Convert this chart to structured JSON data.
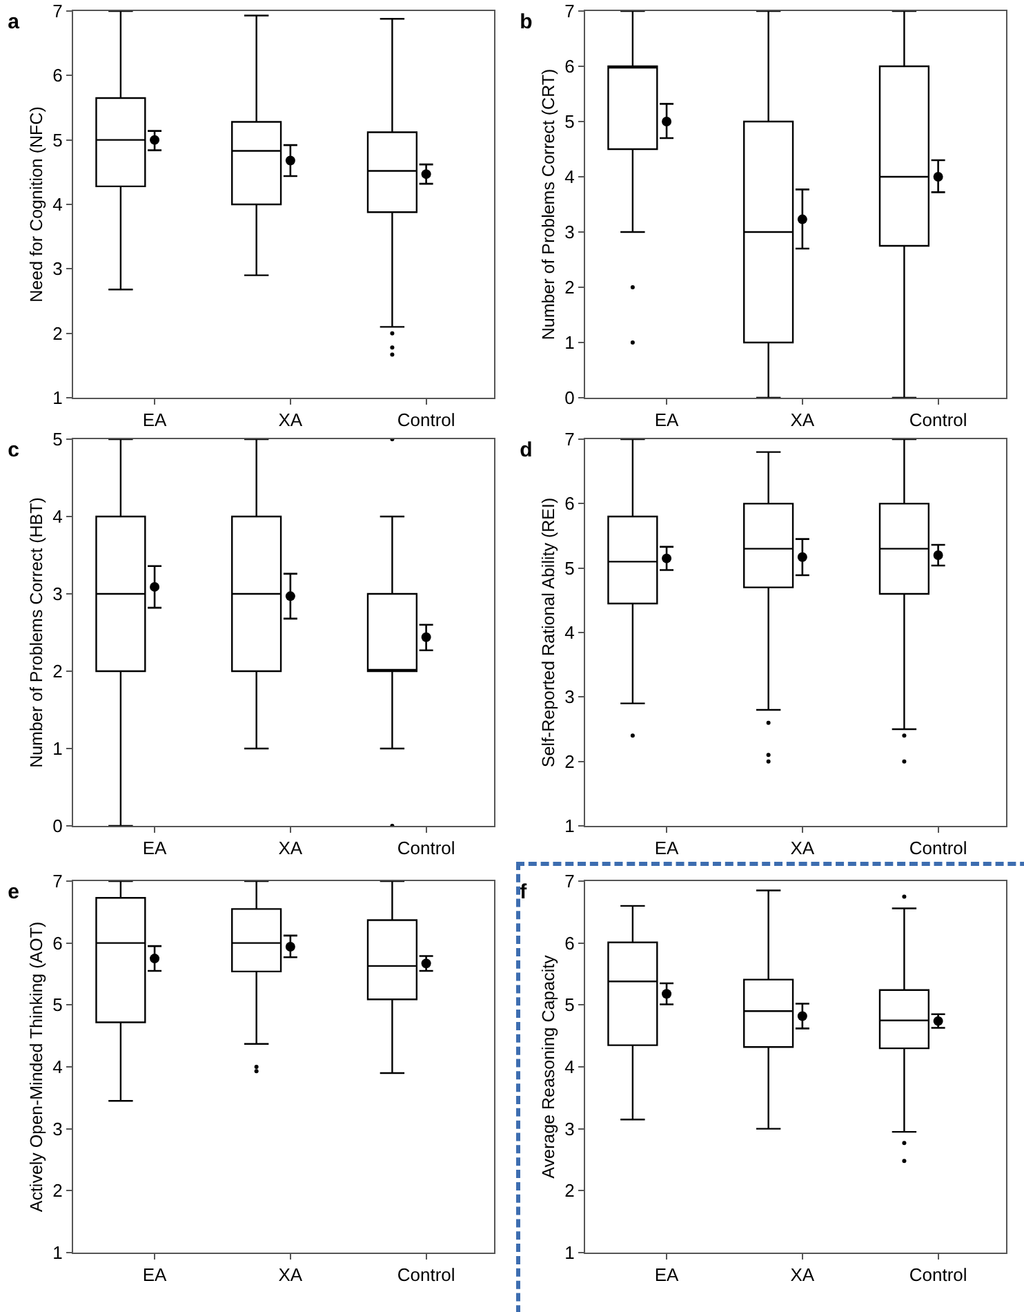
{
  "chart_data": [
    {
      "type": "box",
      "title": "a",
      "ylabel": "Need for Cognition (NFC)",
      "categories": [
        "EA",
        "XA",
        "Control"
      ],
      "ylim": [
        1,
        7
      ],
      "yticks": [
        1,
        2,
        3,
        4,
        5,
        6,
        7
      ],
      "marker": "circle",
      "boxes": [
        {
          "low": 2.68,
          "q1": 4.28,
          "median": 5.0,
          "q3": 5.65,
          "high": 7.0
        },
        {
          "low": 2.9,
          "q1": 4.0,
          "median": 4.83,
          "q3": 5.28,
          "high": 6.93
        },
        {
          "low": 2.1,
          "q1": 3.88,
          "median": 4.52,
          "q3": 5.12,
          "high": 6.88,
          "outliers": [
            2.0,
            1.78,
            1.67
          ]
        }
      ],
      "series": [
        {
          "type": "scatter",
          "color": "#000000",
          "values": [
            5.0,
            4.68,
            4.47
          ],
          "errors": [
            [
              4.84,
              5.14
            ],
            [
              4.44,
              4.92
            ],
            [
              4.32,
              4.62
            ]
          ]
        }
      ]
    },
    {
      "type": "box",
      "title": "b",
      "ylabel": "Number of Problems Correct (CRT)",
      "categories": [
        "EA",
        "XA",
        "Control"
      ],
      "ylim": [
        0,
        7
      ],
      "yticks": [
        0,
        1,
        2,
        3,
        4,
        5,
        6,
        7
      ],
      "marker": "circle",
      "boxes": [
        {
          "low": 3,
          "q1": 4.5,
          "median": 6,
          "q3": 6,
          "high": 7,
          "outliers": [
            2,
            1
          ]
        },
        {
          "low": 0,
          "q1": 1,
          "median": 3,
          "q3": 5,
          "high": 7
        },
        {
          "low": 0,
          "q1": 2.75,
          "median": 4,
          "q3": 6,
          "high": 7
        }
      ],
      "series": [
        {
          "type": "scatter",
          "color": "#000000",
          "values": [
            5.0,
            3.23,
            4.0
          ],
          "errors": [
            [
              4.7,
              5.32
            ],
            [
              2.7,
              3.77
            ],
            [
              3.72,
              4.3
            ]
          ]
        }
      ]
    },
    {
      "type": "box",
      "title": "c",
      "ylabel": "Number of Problems Correct (HBT)",
      "categories": [
        "EA",
        "XA",
        "Control"
      ],
      "ylim": [
        0,
        5
      ],
      "yticks": [
        0,
        1,
        2,
        3,
        4,
        5
      ],
      "marker": "circle",
      "boxes": [
        {
          "low": 0,
          "q1": 2,
          "median": 3,
          "q3": 4,
          "high": 5
        },
        {
          "low": 1,
          "q1": 2,
          "median": 3,
          "q3": 4,
          "high": 5
        },
        {
          "low": 1,
          "q1": 2,
          "median": 2,
          "q3": 3,
          "high": 4,
          "outliers": [
            5,
            0
          ]
        }
      ],
      "series": [
        {
          "type": "scatter",
          "color": "#000000",
          "values": [
            3.09,
            2.97,
            2.44
          ],
          "errors": [
            [
              2.82,
              3.36
            ],
            [
              2.68,
              3.26
            ],
            [
              2.27,
              2.6
            ]
          ]
        }
      ]
    },
    {
      "type": "box",
      "title": "d",
      "ylabel": "Self-Reported Rational Ability (REI)",
      "categories": [
        "EA",
        "XA",
        "Control"
      ],
      "ylim": [
        1,
        7
      ],
      "yticks": [
        1,
        2,
        3,
        4,
        5,
        6,
        7
      ],
      "marker": "circle",
      "boxes": [
        {
          "low": 2.9,
          "q1": 4.45,
          "median": 5.1,
          "q3": 5.8,
          "high": 7,
          "outliers": [
            2.4
          ]
        },
        {
          "low": 2.8,
          "q1": 4.7,
          "median": 5.3,
          "q3": 6.0,
          "high": 6.8,
          "outliers": [
            2.6,
            2.1,
            2.0
          ]
        },
        {
          "low": 2.5,
          "q1": 4.6,
          "median": 5.3,
          "q3": 6.0,
          "high": 7,
          "outliers": [
            2.4,
            2.0
          ]
        }
      ],
      "series": [
        {
          "type": "scatter",
          "color": "#000000",
          "values": [
            5.15,
            5.17,
            5.2
          ],
          "errors": [
            [
              4.97,
              5.33
            ],
            [
              4.89,
              5.45
            ],
            [
              5.04,
              5.36
            ]
          ]
        }
      ]
    },
    {
      "type": "box",
      "title": "e",
      "ylabel": "Actively Open-Minded Thinking (AOT)",
      "categories": [
        "EA",
        "XA",
        "Control"
      ],
      "ylim": [
        1,
        7
      ],
      "yticks": [
        1,
        2,
        3,
        4,
        5,
        6,
        7
      ],
      "marker": "circle",
      "boxes": [
        {
          "low": 3.45,
          "q1": 4.72,
          "median": 6.0,
          "q3": 6.73,
          "high": 7
        },
        {
          "low": 4.37,
          "q1": 5.54,
          "median": 6.0,
          "q3": 6.55,
          "high": 7,
          "outliers": [
            4.0,
            3.93
          ]
        },
        {
          "low": 3.9,
          "q1": 5.09,
          "median": 5.63,
          "q3": 6.37,
          "high": 7
        }
      ],
      "series": [
        {
          "type": "scatter",
          "color": "#000000",
          "values": [
            5.75,
            5.94,
            5.67
          ],
          "errors": [
            [
              5.55,
              5.95
            ],
            [
              5.77,
              6.12
            ],
            [
              5.55,
              5.79
            ]
          ]
        }
      ]
    },
    {
      "type": "box",
      "title": "f",
      "ylabel": "Average Reasoning Capacity",
      "categories": [
        "EA",
        "XA",
        "Control"
      ],
      "ylim": [
        1,
        7
      ],
      "yticks": [
        1,
        2,
        3,
        4,
        5,
        6,
        7
      ],
      "marker": "circle",
      "boxes": [
        {
          "low": 3.15,
          "q1": 4.35,
          "median": 5.38,
          "q3": 6.01,
          "high": 6.6
        },
        {
          "low": 3.0,
          "q1": 4.32,
          "median": 4.9,
          "q3": 5.41,
          "high": 6.85
        },
        {
          "low": 2.95,
          "q1": 4.3,
          "median": 4.75,
          "q3": 5.24,
          "high": 6.56,
          "outliers": [
            6.75,
            2.77,
            2.48
          ]
        }
      ],
      "series": [
        {
          "type": "scatter",
          "color": "#000000",
          "values": [
            5.18,
            4.82,
            4.74
          ],
          "errors": [
            [
              5.01,
              5.35
            ],
            [
              4.62,
              5.02
            ],
            [
              4.63,
              4.85
            ]
          ]
        }
      ]
    }
  ]
}
